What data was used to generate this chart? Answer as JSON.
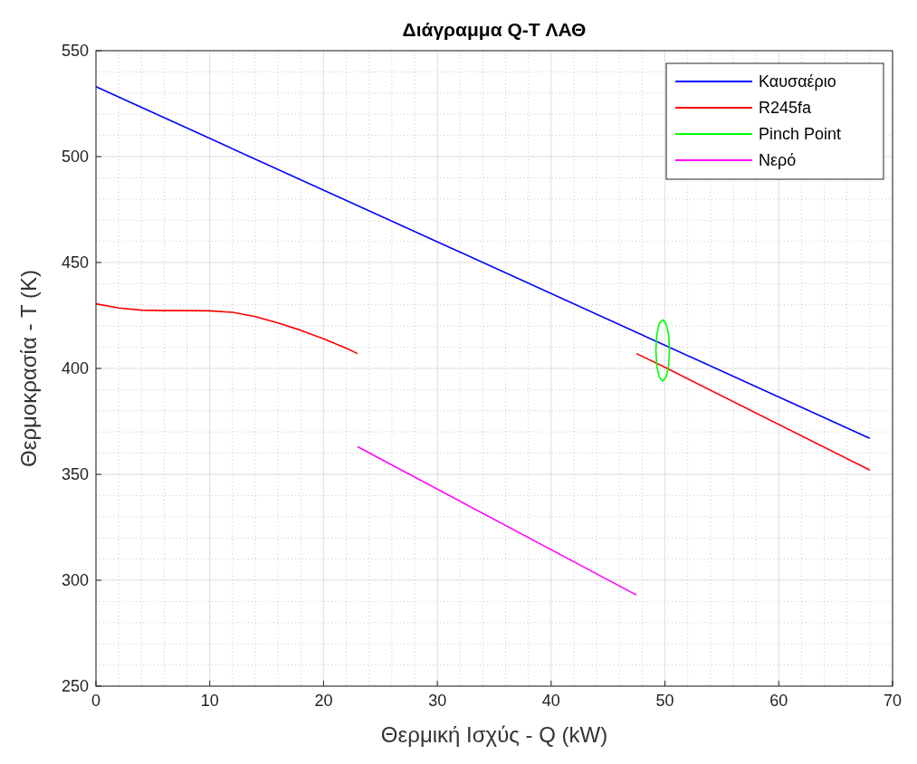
{
  "chart_data": {
    "type": "line",
    "title": "Διάγραμμα Q-T ΛΑΘ",
    "xlabel": "Θερμική Ισχύς - Q (kW)",
    "ylabel": "Θερμοκρασία - T (K)",
    "xlim": [
      0,
      70
    ],
    "ylim": [
      250,
      550
    ],
    "xticks": [
      0,
      10,
      20,
      30,
      40,
      50,
      60,
      70
    ],
    "yticks": [
      250,
      300,
      350,
      400,
      450,
      500,
      550
    ],
    "grid": true,
    "legend": "top right",
    "series": [
      {
        "name": "Καυσαέριο",
        "color": "#0000ff",
        "x": [
          0,
          68
        ],
        "values": [
          533,
          367
        ]
      },
      {
        "name": "R245fa",
        "color": "#ff0000",
        "x": [
          0,
          2,
          4,
          6,
          8,
          10,
          12,
          14,
          16,
          18,
          20,
          22,
          23,
          null,
          47.5,
          50,
          68
        ],
        "values": [
          430.5,
          428.5,
          427.5,
          427.3,
          427.3,
          427.2,
          426.5,
          424.5,
          421.5,
          418,
          414,
          409.5,
          407,
          null,
          407,
          400.5,
          352
        ]
      },
      {
        "name": "Pinch Point",
        "color": "#00ff00",
        "x": [
          49.2,
          49.28,
          49.5,
          49.8,
          50.1,
          50.32,
          50.4,
          null,
          49.2,
          49.28,
          49.5,
          49.8,
          50.1,
          50.32,
          50.4
        ],
        "values": [
          408.5,
          415.8,
          421.1,
          423,
          421.1,
          415.8,
          408.5,
          null,
          408.5,
          401.2,
          395.9,
          394,
          395.9,
          401.2,
          408.5
        ]
      },
      {
        "name": "Νερό",
        "color": "#ff00ff",
        "x": [
          23,
          47.5
        ],
        "values": [
          363,
          293
        ]
      }
    ]
  }
}
